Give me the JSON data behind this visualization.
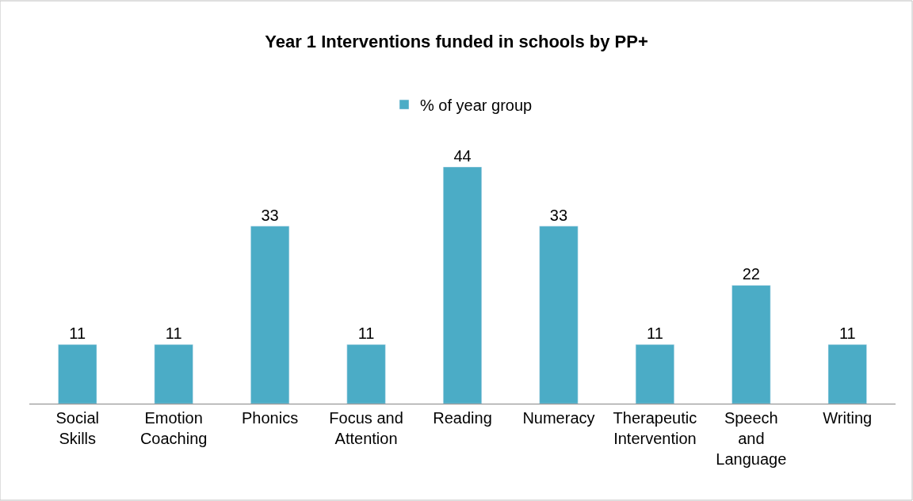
{
  "chart_data": {
    "type": "bar",
    "title": "Year 1 Interventions funded in schools by PP+",
    "categories": [
      "Social Skills",
      "Emotion Coaching",
      "Phonics",
      "Focus and Attention",
      "Reading",
      "Numeracy",
      "Therapeutic Intervention",
      "Speech and Language",
      "Writing"
    ],
    "series": [
      {
        "name": "% of year group",
        "color": "#4bacc6",
        "values": [
          11,
          11,
          33,
          11,
          44,
          33,
          11,
          22,
          11
        ]
      }
    ],
    "data_labels": true,
    "legend": "top"
  }
}
